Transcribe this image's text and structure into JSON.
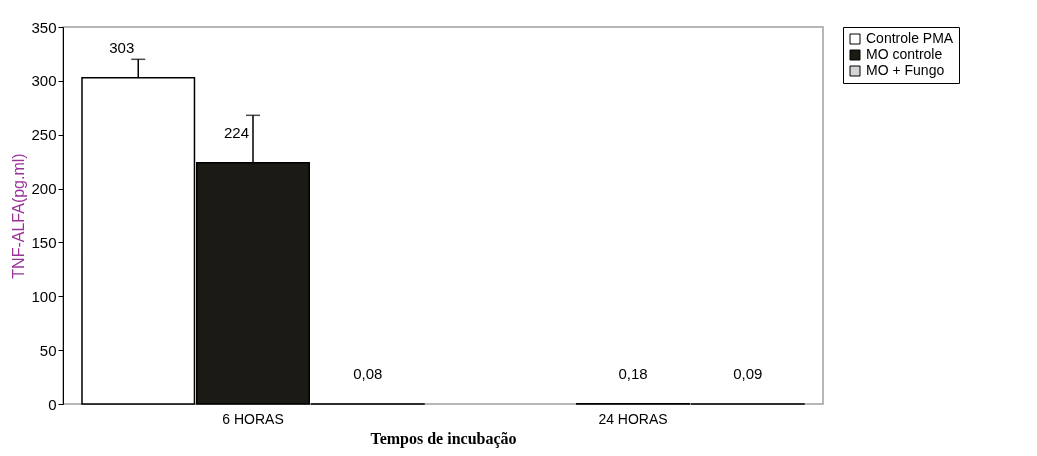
{
  "chart_data": {
    "type": "bar",
    "xlabel": "Tempos de incubação",
    "ylabel": "TNF-ALFA(pg.ml)",
    "categories": [
      "6 HORAS",
      "24 HORAS"
    ],
    "series": [
      {
        "name": "Controle PMA",
        "color": "#ffffff",
        "values": [
          303,
          null
        ],
        "errors": [
          [
            303,
            320
          ],
          null
        ],
        "value_labels": [
          "303",
          null
        ]
      },
      {
        "name": "MO controle",
        "color": "#1c1a14",
        "values": [
          224,
          0.18
        ],
        "errors": [
          [
            224,
            268
          ],
          null
        ],
        "value_labels": [
          "224",
          "0,18"
        ]
      },
      {
        "name": "MO + Fungo",
        "color": "#d4d4d4",
        "values": [
          0.08,
          0.09
        ],
        "value_labels": [
          "0,08",
          "0,09"
        ]
      }
    ],
    "ylim": [
      0,
      350
    ],
    "yticks": [
      0,
      50,
      100,
      150,
      200,
      250,
      300,
      350
    ],
    "grid": false,
    "legend": "right"
  }
}
